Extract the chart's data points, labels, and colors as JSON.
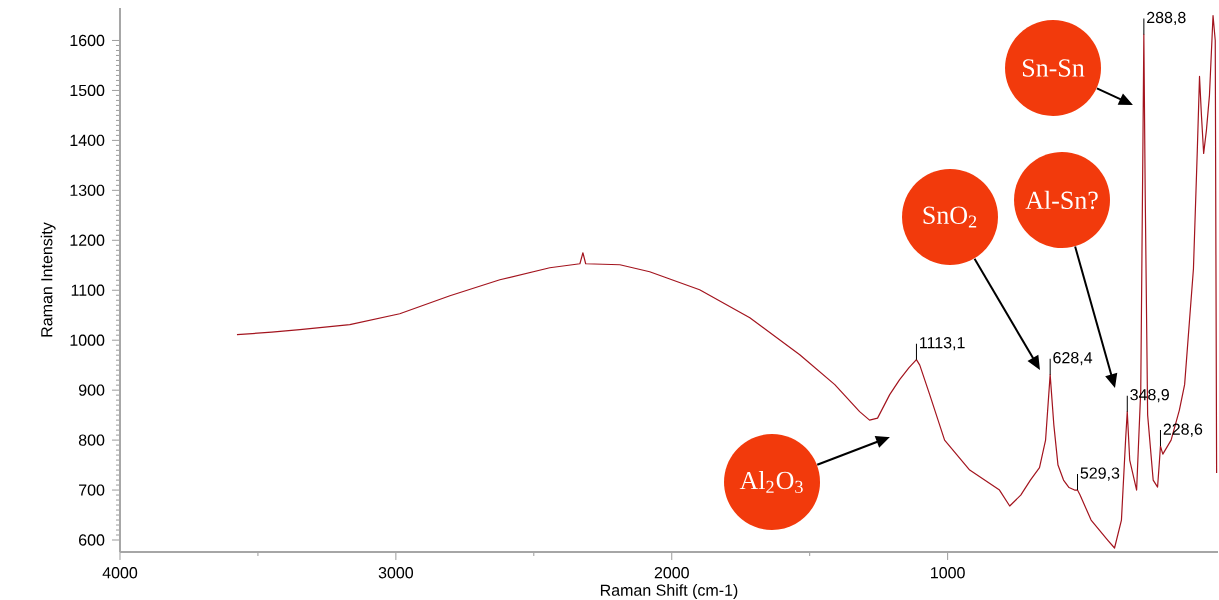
{
  "chart_data": {
    "type": "line",
    "xlabel": "Raman Shift (cm-1)",
    "ylabel": "Raman Intensity",
    "xlim": [
      4000,
      20
    ],
    "ylim": [
      576,
      1665
    ],
    "xticks": [
      4000,
      3000,
      2000,
      1000
    ],
    "yticks": [
      600,
      700,
      800,
      900,
      1000,
      1100,
      1200,
      1300,
      1400,
      1500,
      1600
    ],
    "color": "#a3141e",
    "x": [
      3576,
      3450,
      3348,
      3167,
      2986,
      2804,
      2623,
      2442,
      2333,
      2322,
      2312,
      2188,
      2080,
      1899,
      1717,
      1536,
      1409,
      1319,
      1283,
      1254,
      1210,
      1174,
      1140,
      1113.1,
      1101,
      1065,
      1011,
      920,
      812,
      775,
      735,
      700,
      667,
      645,
      628.4,
      615,
      600,
      580,
      560,
      540,
      529.3,
      520,
      480,
      420,
      395,
      370,
      355,
      348.9,
      340,
      315,
      300,
      292,
      288.8,
      284,
      275,
      255,
      239,
      232,
      228.6,
      220,
      190,
      160,
      141,
      109,
      95,
      87,
      80,
      72,
      62,
      51,
      38,
      30,
      25
    ],
    "values": [
      1011,
      1016,
      1021,
      1031,
      1053,
      1089,
      1121,
      1145,
      1153,
      1175,
      1153,
      1151,
      1137,
      1101,
      1045,
      971,
      911,
      857,
      840,
      844,
      891,
      921,
      945,
      961,
      950,
      891,
      800,
      740,
      700,
      668,
      690,
      720,
      745,
      800,
      931,
      830,
      750,
      720,
      705,
      700,
      700,
      690,
      640,
      600,
      584,
      640,
      800,
      857,
      760,
      700,
      900,
      1400,
      1612,
      1300,
      850,
      720,
      706,
      760,
      788,
      772,
      800,
      860,
      911,
      1143,
      1380,
      1528,
      1450,
      1374,
      1420,
      1490,
      1650,
      1600,
      734
    ],
    "annotations": [
      {
        "text": "1113,1",
        "x": 1113.1,
        "y": 961
      },
      {
        "text": "628,4",
        "x": 628.4,
        "y": 931
      },
      {
        "text": "529,3",
        "x": 529.3,
        "y": 700
      },
      {
        "text": "348,9",
        "x": 348.9,
        "y": 857
      },
      {
        "text": "288,8",
        "x": 288.8,
        "y": 1612
      },
      {
        "text": "228,6",
        "x": 228.6,
        "y": 788
      },
      "Al$_{2}$O$_{3}$",
      "SnO$_{2}$",
      "Al-Sn?",
      "Sn-Sn"
    ]
  }
}
